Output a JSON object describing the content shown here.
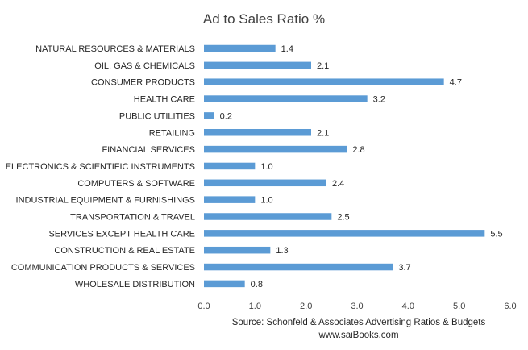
{
  "chart_data": {
    "type": "bar",
    "orientation": "horizontal",
    "title": "Ad to Sales Ratio %",
    "categories": [
      "NATURAL RESOURCES & MATERIALS",
      "OIL, GAS & CHEMICALS",
      "CONSUMER PRODUCTS",
      "HEALTH CARE",
      "PUBLIC UTILITIES",
      "RETAILING",
      "FINANCIAL SERVICES",
      "ELECTRONICS & SCIENTIFIC INSTRUMENTS",
      "COMPUTERS & SOFTWARE",
      "INDUSTRIAL EQUIPMENT & FURNISHINGS",
      "TRANSPORTATION & TRAVEL",
      "SERVICES EXCEPT HEALTH CARE",
      "CONSTRUCTION & REAL ESTATE",
      "COMMUNICATION PRODUCTS & SERVICES",
      "WHOLESALE DISTRIBUTION"
    ],
    "values": [
      1.4,
      2.1,
      4.7,
      3.2,
      0.2,
      2.1,
      2.8,
      1.0,
      2.4,
      1.0,
      2.5,
      5.5,
      1.3,
      3.7,
      0.8
    ],
    "value_labels": [
      "1.4",
      "2.1",
      "4.7",
      "3.2",
      "0.2",
      "2.1",
      "2.8",
      "1.0",
      "2.4",
      "1.0",
      "2.5",
      "5.5",
      "1.3",
      "3.7",
      "0.8"
    ],
    "xlim": [
      0,
      6
    ],
    "xticks": [
      "0.0",
      "1.0",
      "2.0",
      "3.0",
      "4.0",
      "5.0",
      "6.0"
    ],
    "xlabel": "",
    "ylabel": "",
    "grid": false,
    "legend": "none",
    "bar_color": "#5b9bd5",
    "source_lines": [
      "Source: Schonfeld & Associates Advertising Ratios & Budgets",
      "www.saiBooks.com"
    ]
  }
}
